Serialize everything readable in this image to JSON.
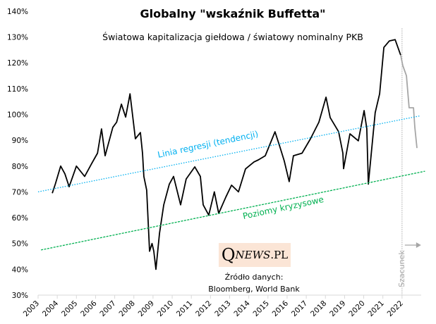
{
  "chart_data": {
    "type": "line",
    "title": "Globalny \"wskaźnik Buffetta\"",
    "subtitle": "Światowa kapitalizacja giełdowa / światowy nominalny PKB",
    "xlabel": "",
    "ylabel": "",
    "xlim": [
      2003,
      2023
    ],
    "ylim": [
      30,
      140
    ],
    "x_ticks": [
      "2003",
      "2004",
      "2005",
      "2006",
      "2007",
      "2008",
      "2009",
      "2010",
      "2011",
      "2012",
      "2013",
      "2014",
      "2015",
      "2016",
      "2017",
      "2018",
      "2019",
      "2020",
      "2021",
      "2022"
    ],
    "y_ticks": [
      "30%",
      "40%",
      "50%",
      "60%",
      "70%",
      "80%",
      "90%",
      "100%",
      "110%",
      "120%",
      "130%",
      "140%"
    ],
    "grid": false,
    "series": [
      {
        "color": "#000000",
        "x": [
          2003.74,
          2003.9,
          2004.18,
          2004.4,
          2004.62,
          2005.0,
          2005.43,
          2005.8,
          2006.1,
          2006.31,
          2006.5,
          2006.9,
          2007.1,
          2007.35,
          2007.57,
          2007.8,
          2008.08,
          2008.34,
          2008.45,
          2008.52,
          2008.67,
          2008.82,
          2008.95,
          2009.04,
          2009.15,
          2009.34,
          2009.56,
          2009.85,
          2010.07,
          2010.44,
          2010.73,
          2011.18,
          2011.47,
          2011.62,
          2011.91,
          2012.2,
          2012.43,
          2012.8,
          2013.1,
          2013.46,
          2013.83,
          2014.27,
          2014.5,
          2014.86,
          2015.37,
          2015.6,
          2015.85,
          2016.11,
          2016.33,
          2016.78,
          2017.22,
          2017.66,
          2018.03,
          2018.25,
          2018.69,
          2018.91,
          2018.95,
          2019.28,
          2019.72,
          2020.02,
          2020.16,
          2020.24,
          2020.6,
          2020.83,
          2021.05,
          2021.34,
          2021.64,
          2021.93
        ],
        "y": [
          69.5,
          73,
          80,
          77,
          72,
          80,
          76,
          81,
          85,
          94.4,
          84,
          95,
          97,
          104,
          99,
          108,
          90.6,
          93,
          85,
          76,
          70.7,
          47,
          50,
          47,
          40,
          54,
          65,
          73,
          76,
          65,
          75,
          79.7,
          76,
          65,
          61,
          70,
          61.7,
          68,
          72.6,
          70,
          78.9,
          81.6,
          82.4,
          84,
          93.3,
          88,
          82,
          74,
          84,
          85,
          90.6,
          97,
          106.7,
          98.8,
          93.3,
          85,
          79,
          92.5,
          89.8,
          101.5,
          94.5,
          73,
          100.7,
          108,
          126,
          128.5,
          129,
          123
        ]
      },
      {
        "name": "Szacunek",
        "color": "#a6a6a6",
        "x": [
          2021.93,
          2022.04,
          2022.23,
          2022.37,
          2022.6,
          2022.67,
          2022.78
        ],
        "y": [
          123,
          119,
          115,
          102.6,
          102.6,
          95,
          87
        ]
      },
      {
        "name": "Linia regresji (tendencji)",
        "color": "#00b0f0",
        "style": "dotted",
        "x": [
          2003.0,
          2022.96
        ],
        "y": [
          70,
          99.5
        ]
      },
      {
        "name": "Poziomy kryzysowe",
        "color": "#00b050",
        "style": "dashed",
        "x": [
          2003.15,
          2023.2
        ],
        "y": [
          47.5,
          78
        ]
      }
    ],
    "annotations": {
      "regression_label": "Linia regresji (tendencji)",
      "crisis_label": "Poziomy kryzysowe",
      "estimate_label": "Szacunek",
      "estimate_start": 2022
    }
  },
  "logo": {
    "q": "Q",
    "news": "NEWS",
    "pl": ".PL"
  },
  "source": {
    "line1": "Źródło danych:",
    "line2": "Bloomberg, World Bank"
  }
}
